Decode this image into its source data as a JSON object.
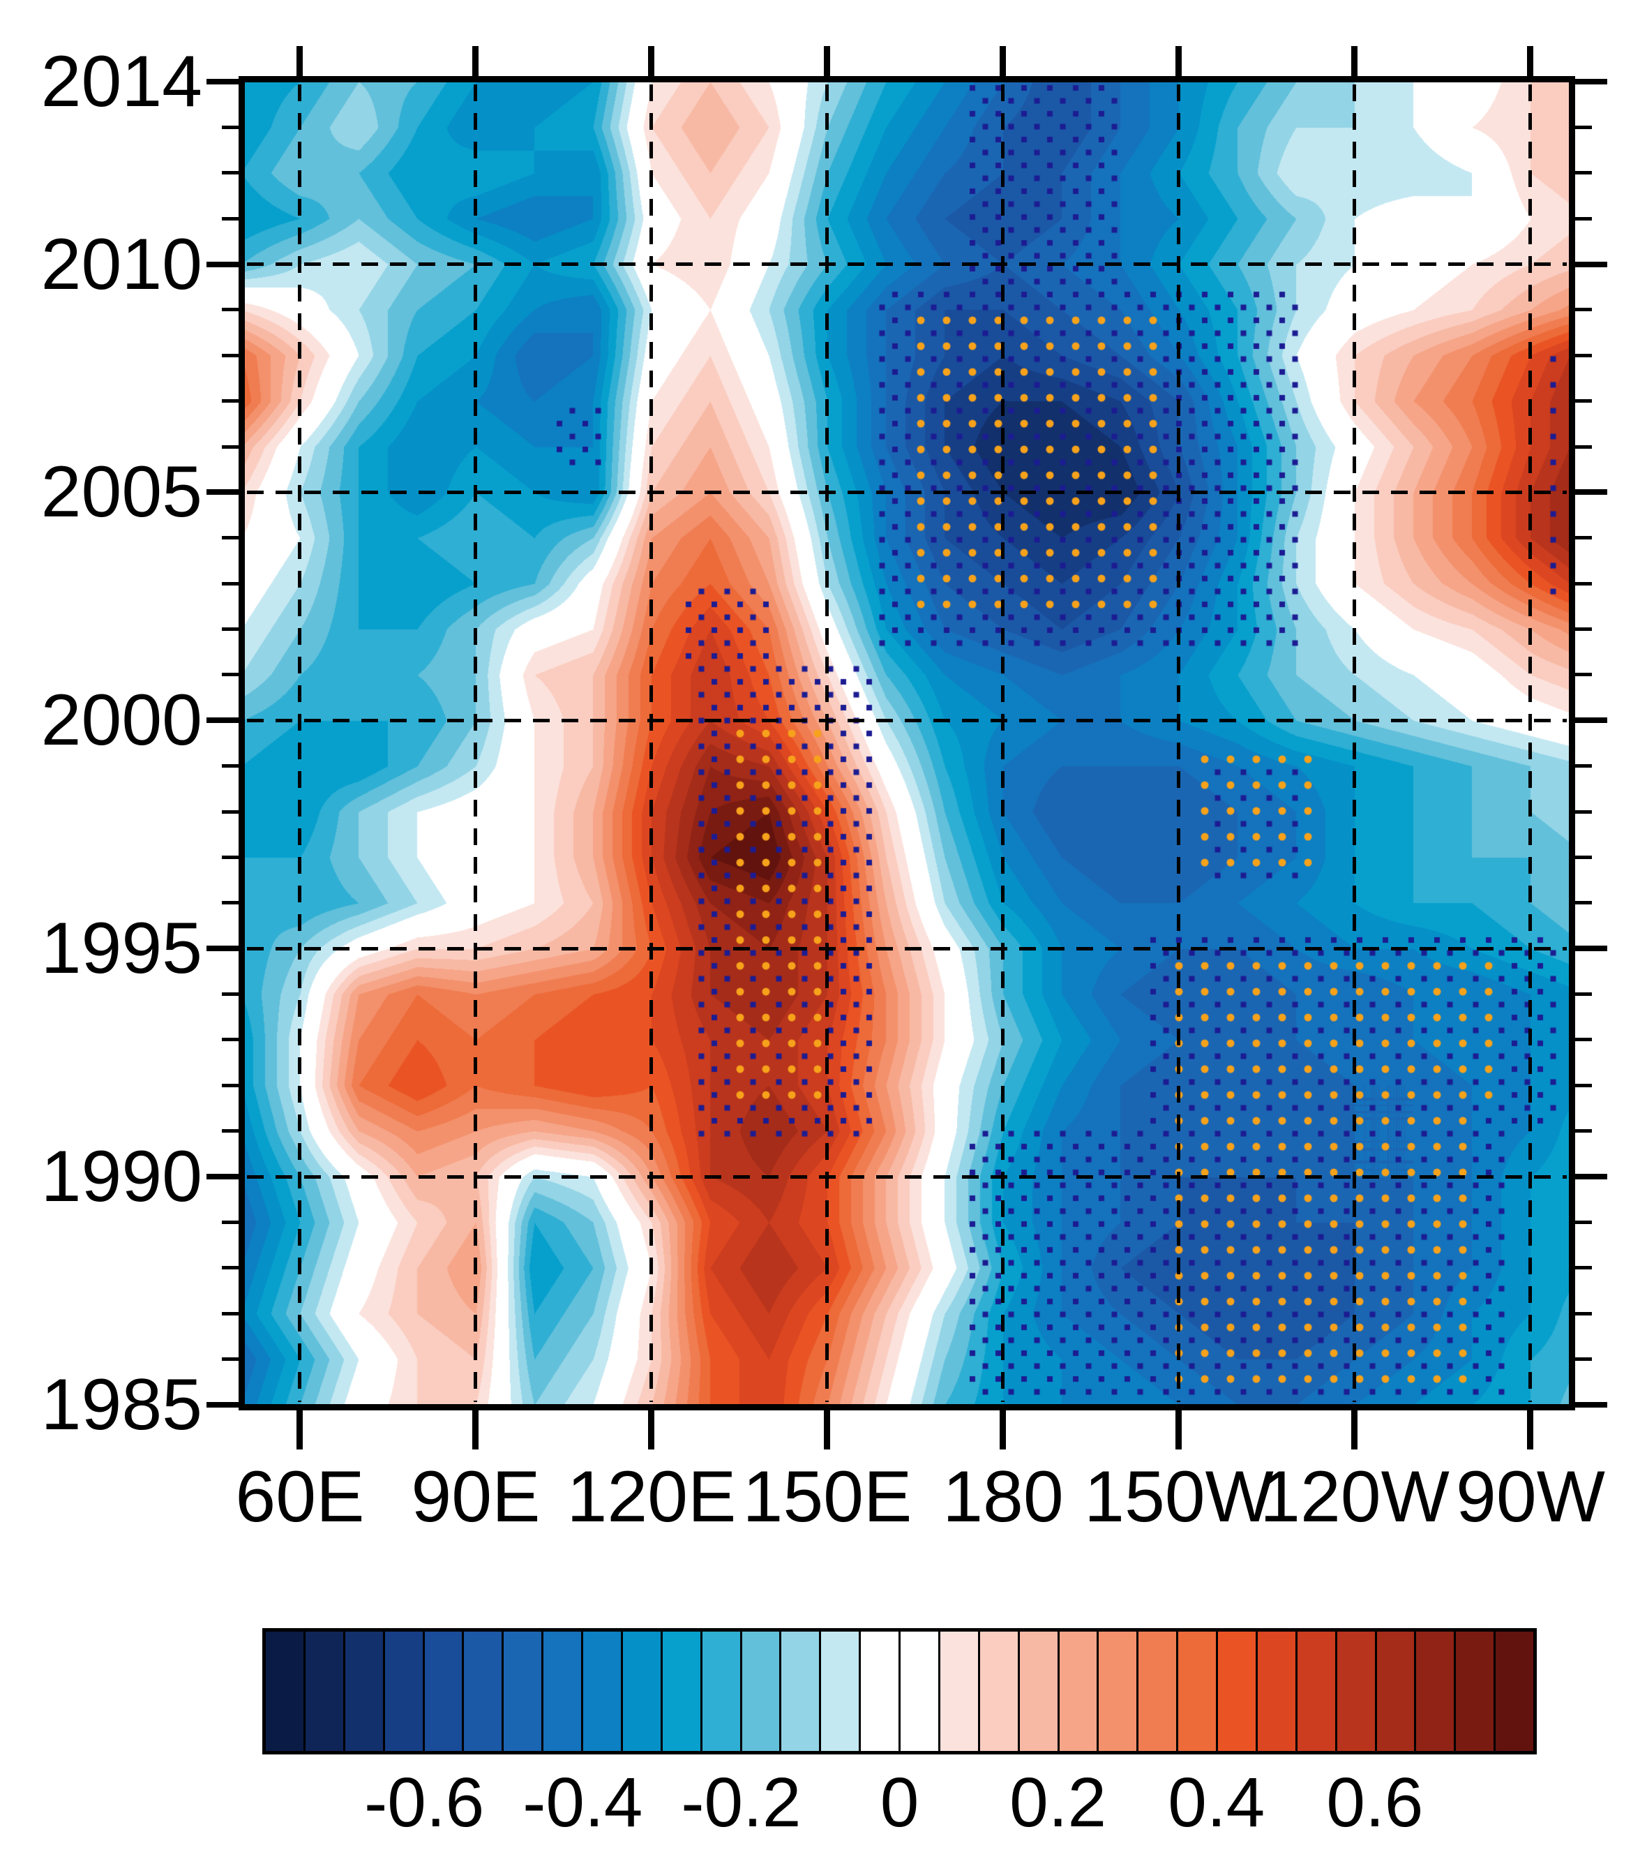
{
  "figure": {
    "kind": "hovmoller-filled-contour",
    "y_axis": {
      "ticks": [
        {
          "label": "2014",
          "year": 2014
        },
        {
          "label": "2010",
          "year": 2010
        },
        {
          "label": "2005",
          "year": 2005
        },
        {
          "label": "2000",
          "year": 2000
        },
        {
          "label": "1995",
          "year": 1995
        },
        {
          "label": "1990",
          "year": 1990
        },
        {
          "label": "1985",
          "year": 1985
        }
      ],
      "minor_step_years": 1,
      "top_year": 2014,
      "bottom_year": 1985
    },
    "x_axis": {
      "ticks": [
        {
          "label": "60E",
          "lon": 60
        },
        {
          "label": "90E",
          "lon": 90
        },
        {
          "label": "120E",
          "lon": 120
        },
        {
          "label": "150E",
          "lon": 150
        },
        {
          "label": "180",
          "lon": 180
        },
        {
          "label": "150W",
          "lon": 210
        },
        {
          "label": "120W",
          "lon": 240
        },
        {
          "label": "90W",
          "lon": 270
        }
      ],
      "left_lon": 50.48,
      "right_lon": 276.7
    },
    "gridlines": {
      "style": "dashed",
      "x_lons": [
        60,
        90,
        120,
        150,
        180,
        210,
        240,
        270
      ],
      "y_years": [
        2010,
        2005,
        2000,
        1995,
        1990
      ]
    }
  },
  "chart_data": {
    "type": "heatmap",
    "x_label_convention": "longitude (E/W)",
    "y_label_convention": "year",
    "x_longitudes": [
      50,
      60,
      70,
      80,
      90,
      100,
      110,
      120,
      130,
      140,
      150,
      160,
      170,
      180,
      190,
      200,
      210,
      220,
      230,
      240,
      250,
      260,
      270,
      280
    ],
    "y_years": [
      2014,
      2013,
      2012,
      2011,
      2010,
      2009,
      2008,
      2007,
      2006,
      2005,
      2004,
      2003,
      2002,
      2001,
      2000,
      1999,
      1998,
      1997,
      1996,
      1995,
      1994,
      1993,
      1992,
      1991,
      1990,
      1989,
      1988,
      1987,
      1986,
      1985
    ],
    "values": [
      [
        -0.3,
        -0.25,
        -0.15,
        -0.2,
        -0.3,
        -0.35,
        -0.3,
        0.05,
        0.15,
        0.05,
        -0.1,
        -0.25,
        -0.35,
        -0.45,
        -0.55,
        -0.45,
        -0.35,
        -0.25,
        -0.15,
        -0.1,
        -0.05,
        0.0,
        0.1,
        0.15
      ],
      [
        -0.3,
        -0.2,
        -0.1,
        -0.25,
        -0.35,
        -0.3,
        -0.25,
        0.1,
        0.2,
        0.1,
        -0.15,
        -0.3,
        -0.4,
        -0.5,
        -0.55,
        -0.45,
        -0.35,
        -0.2,
        -0.1,
        -0.1,
        -0.05,
        0.05,
        0.1,
        0.15
      ],
      [
        -0.25,
        -0.15,
        -0.2,
        -0.3,
        -0.25,
        -0.3,
        -0.35,
        0.05,
        0.15,
        0.05,
        -0.2,
        -0.35,
        -0.45,
        -0.5,
        -0.5,
        -0.4,
        -0.3,
        -0.2,
        -0.05,
        -0.1,
        -0.1,
        -0.05,
        0.1,
        0.15
      ],
      [
        -0.3,
        -0.25,
        -0.15,
        -0.25,
        -0.35,
        -0.4,
        -0.35,
        0.0,
        0.1,
        0.0,
        -0.25,
        -0.4,
        -0.5,
        -0.55,
        -0.5,
        -0.4,
        -0.35,
        -0.25,
        -0.15,
        -0.05,
        0.0,
        -0.05,
        0.05,
        0.1
      ],
      [
        -0.2,
        -0.1,
        -0.05,
        -0.15,
        -0.2,
        -0.3,
        -0.25,
        0.05,
        0.1,
        -0.05,
        -0.2,
        -0.35,
        -0.45,
        -0.5,
        -0.45,
        -0.4,
        -0.3,
        -0.2,
        -0.1,
        -0.05,
        0.0,
        0.05,
        0.1,
        0.15
      ],
      [
        0.1,
        0.0,
        -0.1,
        -0.2,
        -0.25,
        -0.35,
        -0.4,
        -0.05,
        0.05,
        -0.1,
        -0.3,
        -0.45,
        -0.55,
        -0.55,
        -0.5,
        -0.45,
        -0.35,
        -0.25,
        -0.1,
        0.0,
        0.05,
        0.1,
        0.2,
        0.3
      ],
      [
        0.35,
        0.15,
        -0.05,
        -0.25,
        -0.3,
        -0.45,
        -0.4,
        0.0,
        0.1,
        -0.05,
        -0.3,
        -0.45,
        -0.55,
        -0.6,
        -0.55,
        -0.5,
        -0.4,
        -0.25,
        -0.05,
        0.1,
        0.2,
        0.3,
        0.45,
        0.6
      ],
      [
        0.4,
        0.1,
        -0.15,
        -0.3,
        -0.35,
        -0.4,
        -0.35,
        0.05,
        0.15,
        0.0,
        -0.25,
        -0.45,
        -0.6,
        -0.65,
        -0.65,
        -0.6,
        -0.5,
        -0.3,
        -0.1,
        0.1,
        0.25,
        0.35,
        0.5,
        0.65
      ],
      [
        0.2,
        -0.05,
        -0.25,
        -0.35,
        -0.3,
        -0.35,
        -0.35,
        0.1,
        0.2,
        0.05,
        -0.25,
        -0.45,
        -0.6,
        -0.7,
        -0.7,
        -0.65,
        -0.5,
        -0.35,
        -0.15,
        0.0,
        0.15,
        0.3,
        0.5,
        0.65
      ],
      [
        0.1,
        -0.1,
        -0.25,
        -0.35,
        -0.25,
        -0.3,
        -0.35,
        0.15,
        0.25,
        0.1,
        -0.2,
        -0.4,
        -0.55,
        -0.65,
        -0.7,
        -0.7,
        -0.55,
        -0.35,
        -0.15,
        0.05,
        0.2,
        0.35,
        0.55,
        0.7
      ],
      [
        0.05,
        -0.05,
        -0.25,
        -0.25,
        -0.2,
        -0.25,
        -0.15,
        0.25,
        0.35,
        0.2,
        -0.15,
        -0.4,
        -0.55,
        -0.6,
        -0.65,
        -0.6,
        -0.5,
        -0.35,
        -0.1,
        0.05,
        0.2,
        0.35,
        0.55,
        0.7
      ],
      [
        0.0,
        -0.1,
        -0.25,
        -0.3,
        -0.25,
        -0.2,
        0.0,
        0.3,
        0.4,
        0.25,
        -0.1,
        -0.35,
        -0.5,
        -0.55,
        -0.6,
        -0.55,
        -0.45,
        -0.3,
        -0.1,
        0.05,
        0.15,
        0.25,
        0.4,
        0.55
      ],
      [
        -0.05,
        -0.15,
        -0.25,
        -0.25,
        -0.15,
        0.0,
        0.05,
        0.35,
        0.5,
        0.35,
        0.0,
        -0.3,
        -0.45,
        -0.5,
        -0.55,
        -0.5,
        -0.4,
        -0.3,
        -0.15,
        -0.05,
        0.05,
        0.1,
        0.2,
        0.3
      ],
      [
        -0.1,
        -0.2,
        -0.25,
        -0.2,
        -0.15,
        0.1,
        0.15,
        0.4,
        0.55,
        0.4,
        0.1,
        -0.2,
        -0.35,
        -0.4,
        -0.45,
        -0.4,
        -0.35,
        -0.25,
        -0.15,
        -0.1,
        -0.05,
        0.0,
        0.1,
        0.15
      ],
      [
        -0.2,
        -0.25,
        -0.25,
        -0.25,
        -0.15,
        0.05,
        0.15,
        0.4,
        0.55,
        0.45,
        0.2,
        -0.1,
        -0.3,
        -0.35,
        -0.4,
        -0.4,
        -0.35,
        -0.3,
        -0.2,
        -0.15,
        -0.1,
        -0.05,
        0.0,
        0.05
      ],
      [
        -0.25,
        -0.3,
        -0.3,
        -0.2,
        -0.1,
        0.05,
        0.15,
        0.45,
        0.65,
        0.6,
        0.3,
        0.0,
        -0.25,
        -0.4,
        -0.45,
        -0.45,
        -0.45,
        -0.4,
        -0.35,
        -0.3,
        -0.25,
        -0.2,
        -0.15,
        -0.1
      ],
      [
        -0.25,
        -0.3,
        -0.15,
        -0.05,
        0.0,
        0.05,
        0.2,
        0.5,
        0.7,
        0.75,
        0.45,
        0.1,
        -0.2,
        -0.4,
        -0.5,
        -0.5,
        -0.5,
        -0.45,
        -0.4,
        -0.3,
        -0.25,
        -0.2,
        -0.15,
        -0.1
      ],
      [
        -0.25,
        -0.25,
        -0.15,
        -0.05,
        0.05,
        0.05,
        0.2,
        0.5,
        0.75,
        0.8,
        0.55,
        0.15,
        -0.15,
        -0.35,
        -0.45,
        -0.5,
        -0.5,
        -0.45,
        -0.4,
        -0.3,
        -0.25,
        -0.2,
        -0.2,
        -0.15
      ],
      [
        -0.2,
        -0.25,
        -0.2,
        -0.1,
        0.0,
        0.05,
        0.15,
        0.45,
        0.65,
        0.7,
        0.55,
        0.2,
        -0.1,
        -0.3,
        -0.4,
        -0.45,
        -0.45,
        -0.4,
        -0.35,
        -0.3,
        -0.25,
        -0.25,
        -0.2,
        -0.15
      ],
      [
        -0.25,
        -0.15,
        0.0,
        0.1,
        0.1,
        0.15,
        0.2,
        0.4,
        0.6,
        0.65,
        0.55,
        0.25,
        0.0,
        -0.2,
        -0.35,
        -0.4,
        -0.45,
        -0.45,
        -0.4,
        -0.35,
        -0.35,
        -0.3,
        -0.25,
        -0.2
      ],
      [
        -0.25,
        -0.1,
        0.25,
        0.35,
        0.3,
        0.35,
        0.4,
        0.45,
        0.6,
        0.65,
        0.55,
        0.3,
        0.05,
        -0.2,
        -0.35,
        -0.45,
        -0.5,
        -0.5,
        -0.45,
        -0.45,
        -0.4,
        -0.4,
        -0.35,
        -0.3
      ],
      [
        -0.3,
        -0.05,
        0.3,
        0.4,
        0.35,
        0.4,
        0.45,
        0.45,
        0.55,
        0.6,
        0.5,
        0.3,
        0.05,
        -0.15,
        -0.3,
        -0.4,
        -0.45,
        -0.45,
        -0.45,
        -0.4,
        -0.4,
        -0.35,
        -0.35,
        -0.3
      ],
      [
        -0.3,
        -0.05,
        0.35,
        0.45,
        0.35,
        0.4,
        0.45,
        0.4,
        0.55,
        0.6,
        0.5,
        0.25,
        0.0,
        -0.2,
        -0.35,
        -0.45,
        -0.5,
        -0.5,
        -0.5,
        -0.45,
        -0.45,
        -0.4,
        -0.35,
        -0.3
      ],
      [
        -0.35,
        -0.1,
        0.2,
        0.3,
        0.25,
        0.2,
        0.25,
        0.35,
        0.55,
        0.65,
        0.55,
        0.3,
        0.0,
        -0.25,
        -0.4,
        -0.45,
        -0.5,
        -0.5,
        -0.5,
        -0.45,
        -0.45,
        -0.4,
        -0.35,
        -0.25
      ],
      [
        -0.4,
        -0.2,
        0.0,
        0.2,
        0.15,
        -0.1,
        -0.05,
        0.25,
        0.55,
        0.6,
        0.45,
        0.2,
        -0.05,
        -0.3,
        -0.4,
        -0.45,
        -0.5,
        -0.5,
        -0.5,
        -0.45,
        -0.45,
        -0.4,
        -0.3,
        -0.25
      ],
      [
        -0.45,
        -0.25,
        -0.05,
        0.1,
        0.2,
        -0.25,
        -0.15,
        0.1,
        0.45,
        0.55,
        0.45,
        0.2,
        -0.05,
        -0.3,
        -0.4,
        -0.45,
        -0.5,
        -0.55,
        -0.5,
        -0.5,
        -0.45,
        -0.4,
        -0.3,
        -0.25
      ],
      [
        -0.4,
        -0.2,
        0.0,
        0.15,
        0.25,
        -0.3,
        -0.2,
        0.05,
        0.5,
        0.6,
        0.5,
        0.25,
        0.0,
        -0.25,
        -0.4,
        -0.5,
        -0.55,
        -0.55,
        -0.55,
        -0.5,
        -0.45,
        -0.4,
        -0.3,
        -0.25
      ],
      [
        -0.35,
        -0.15,
        0.05,
        0.15,
        0.2,
        -0.25,
        -0.15,
        0.1,
        0.45,
        0.55,
        0.4,
        0.15,
        -0.1,
        -0.3,
        -0.4,
        -0.45,
        -0.5,
        -0.55,
        -0.55,
        -0.5,
        -0.45,
        -0.35,
        -0.3,
        -0.2
      ],
      [
        -0.45,
        -0.25,
        -0.05,
        0.1,
        0.15,
        -0.2,
        -0.1,
        0.1,
        0.4,
        0.5,
        0.35,
        0.1,
        -0.15,
        -0.3,
        -0.35,
        -0.4,
        -0.45,
        -0.5,
        -0.5,
        -0.45,
        -0.4,
        -0.35,
        -0.25,
        -0.2
      ],
      [
        -0.4,
        -0.2,
        0.0,
        0.1,
        0.1,
        -0.15,
        -0.05,
        0.15,
        0.4,
        0.5,
        0.3,
        0.05,
        -0.2,
        -0.3,
        -0.35,
        -0.35,
        -0.4,
        -0.45,
        -0.45,
        -0.4,
        -0.35,
        -0.3,
        -0.25,
        -0.15
      ]
    ],
    "colorbar": {
      "min": -0.8,
      "max": 0.8,
      "interval": 0.05,
      "ticks": [
        {
          "label": "-0.6",
          "value": -0.6
        },
        {
          "label": "-0.4",
          "value": -0.4
        },
        {
          "label": "-0.2",
          "value": -0.2
        },
        {
          "label": "0",
          "value": 0
        },
        {
          "label": "0.2",
          "value": 0.2
        },
        {
          "label": "0.4",
          "value": 0.4
        },
        {
          "label": "0.6",
          "value": 0.6
        }
      ],
      "colors": [
        "#0A1B45",
        "#0F2558",
        "#12306B",
        "#163E85",
        "#194C99",
        "#1B59A7",
        "#1B66B3",
        "#1572BC",
        "#0C80C3",
        "#0590C8",
        "#07A0CD",
        "#2FAFD3",
        "#62C0DB",
        "#93D4E6",
        "#C3E8F2",
        "#FFFFFF",
        "#FFFFFF",
        "#FCE2DC",
        "#FACDC0",
        "#F8B9A4",
        "#F6A588",
        "#F3916C",
        "#F07D51",
        "#ED6A39",
        "#EA5424",
        "#DC4620",
        "#CB3D1E",
        "#B9341C",
        "#A52C19",
        "#902315",
        "#7A1B11",
        "#62130D"
      ]
    },
    "stipple": {
      "blue_dot_color": "#1C1C92",
      "orange_dot_color": "#F7A21B",
      "blue_regions": [
        {
          "lon": [
            128,
            158
          ],
          "year": [
            1990.8,
            2001.2
          ]
        },
        {
          "lon": [
            126,
            141
          ],
          "year": [
            2001.2,
            2002.9
          ]
        },
        {
          "lon": [
            174,
            266
          ],
          "year": [
            1985.0,
            1991.2
          ]
        },
        {
          "lon": [
            204,
            281
          ],
          "year": [
            1991.2,
            1995.4
          ]
        },
        {
          "lon": [
            158,
            230
          ],
          "year": [
            2001.6,
            2009.4
          ]
        },
        {
          "lon": [
            174,
            201
          ],
          "year": [
            2009.4,
            2014.0
          ]
        },
        {
          "lon": [
            273,
            281
          ],
          "year": [
            2002.6,
            2008.2
          ]
        },
        {
          "lon": [
            104,
            112
          ],
          "year": [
            2005.6,
            2006.8
          ]
        }
      ],
      "orange_regions": [
        {
          "lon": [
            133,
            152
          ],
          "year": [
            1991.4,
            1999.9
          ]
        },
        {
          "lon": [
            208,
            262
          ],
          "year": [
            1985.0,
            1991.4
          ]
        },
        {
          "lon": [
            210,
            266
          ],
          "year": [
            1991.4,
            1994.8
          ]
        },
        {
          "lon": [
            213,
            233
          ],
          "year": [
            1996.6,
            1999.4
          ]
        },
        {
          "lon": [
            163,
            209
          ],
          "year": [
            2002.2,
            2009.2
          ]
        }
      ]
    }
  }
}
